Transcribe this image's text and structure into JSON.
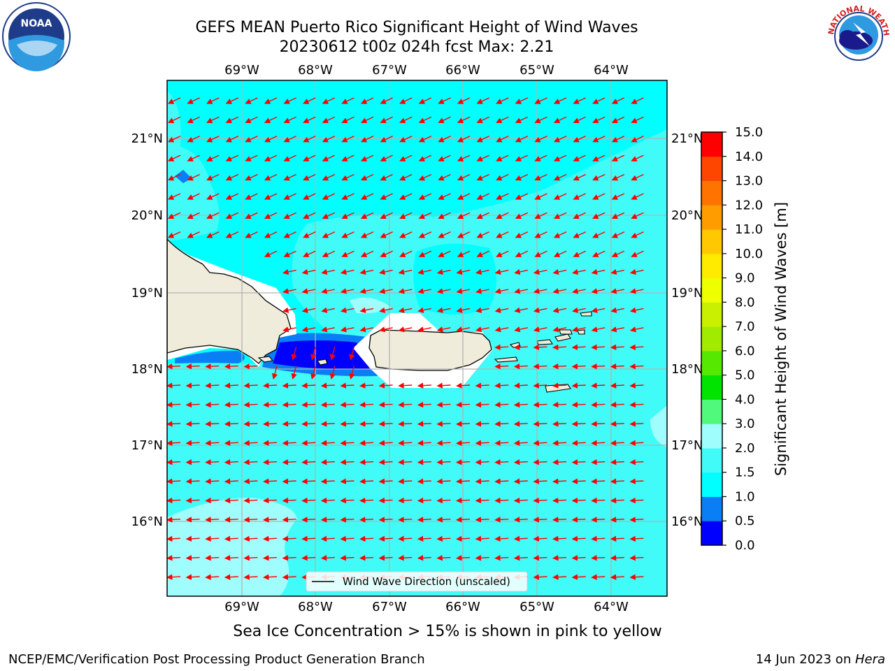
{
  "title": {
    "line1": "GEFS MEAN Puerto Rico Significant Height of Wind Waves",
    "line2": "20230612 t00z 024h fcst   Max: 2.21"
  },
  "logos": {
    "left": "noaa-logo",
    "right": "nws-logo",
    "left_text": "NOAA",
    "right_text": "NATIONAL WEATHER SERVICE"
  },
  "map": {
    "lon_labels": [
      "69°W",
      "68°W",
      "67°W",
      "66°W",
      "65°W",
      "64°W"
    ],
    "lat_labels": [
      "21°N",
      "20°N",
      "19°N",
      "18°N",
      "17°N",
      "16°N"
    ],
    "legend": "Wind Wave Direction (unscaled)",
    "colors": {
      "land": "#efecdb",
      "h_0_05": "#0000ff",
      "h_05_10": "#0a7ff5",
      "h_10_15": "#00ffff",
      "h_15_20": "#40fbf8",
      "h_20_30": "#9ffdfd",
      "arrow": "#ff0000"
    }
  },
  "colorbar": {
    "label": "Significant Height of Wind Waves [m]",
    "ticks": [
      "0.0",
      "0.5",
      "1.0",
      "1.5",
      "2.0",
      "3.0",
      "4.0",
      "5.0",
      "6.0",
      "7.0",
      "8.0",
      "9.0",
      "10.0",
      "11.0",
      "12.0",
      "13.0",
      "14.0",
      "15.0"
    ],
    "colors": [
      "#0000ff",
      "#0a7ff5",
      "#00ffff",
      "#40fbf8",
      "#9ffdfd",
      "#50f87c",
      "#00e400",
      "#57e800",
      "#a0eb00",
      "#c8f000",
      "#eeff00",
      "#ffeb00",
      "#ffc800",
      "#ff9d00",
      "#ff7300",
      "#ff4600",
      "#ff0000"
    ]
  },
  "footer": {
    "note": "Sea Ice Concentration > 15% is shown in pink to yellow",
    "credit": "NCEP/EMC/Verification Post Processing Product Generation Branch",
    "date": "14 Jun 2023 on ",
    "host": "Hera"
  }
}
